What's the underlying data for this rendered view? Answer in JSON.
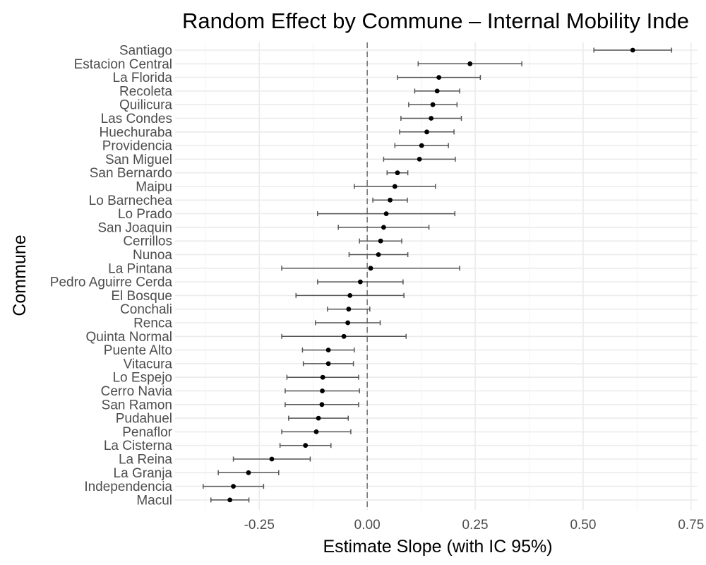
{
  "chart_data": {
    "type": "scatter",
    "title": "Random Effect by Commune – Internal Mobility Inde",
    "xlabel": "Estimate Slope (with IC 95%)",
    "ylabel": "Commune",
    "xlim": [
      -0.445,
      0.765
    ],
    "x_ticks": [
      -0.25,
      0.0,
      0.25,
      0.5,
      0.75
    ],
    "x_tick_labels": [
      "-0.25",
      "0.00",
      "0.25",
      "0.50",
      "0.75"
    ],
    "reference_line": {
      "x": 0,
      "style": "dashed"
    },
    "grid": true,
    "point_color": "#000000",
    "errorbar_color": "#555555",
    "points": [
      {
        "label": "Santiago",
        "estimate": 0.615,
        "lower": 0.525,
        "upper": 0.705
      },
      {
        "label": "Estacion Central",
        "estimate": 0.238,
        "lower": 0.118,
        "upper": 0.358
      },
      {
        "label": "La Florida",
        "estimate": 0.166,
        "lower": 0.07,
        "upper": 0.262
      },
      {
        "label": "Recoleta",
        "estimate": 0.162,
        "lower": 0.11,
        "upper": 0.214
      },
      {
        "label": "Quilicura",
        "estimate": 0.152,
        "lower": 0.096,
        "upper": 0.208
      },
      {
        "label": "Las Condes",
        "estimate": 0.148,
        "lower": 0.078,
        "upper": 0.218
      },
      {
        "label": "Huechuraba",
        "estimate": 0.138,
        "lower": 0.075,
        "upper": 0.201
      },
      {
        "label": "Providencia",
        "estimate": 0.126,
        "lower": 0.064,
        "upper": 0.188
      },
      {
        "label": "San Miguel",
        "estimate": 0.121,
        "lower": 0.038,
        "upper": 0.204
      },
      {
        "label": "San Bernardo",
        "estimate": 0.07,
        "lower": 0.046,
        "upper": 0.094
      },
      {
        "label": "Maipu",
        "estimate": 0.064,
        "lower": -0.03,
        "upper": 0.158
      },
      {
        "label": "Lo Barnechea",
        "estimate": 0.053,
        "lower": 0.013,
        "upper": 0.093
      },
      {
        "label": "Lo Prado",
        "estimate": 0.044,
        "lower": -0.115,
        "upper": 0.203
      },
      {
        "label": "San Joaquin",
        "estimate": 0.038,
        "lower": -0.067,
        "upper": 0.143
      },
      {
        "label": "Cerrillos",
        "estimate": 0.031,
        "lower": -0.018,
        "upper": 0.08
      },
      {
        "label": "Nunoa",
        "estimate": 0.026,
        "lower": -0.042,
        "upper": 0.094
      },
      {
        "label": "La Pintana",
        "estimate": 0.008,
        "lower": -0.198,
        "upper": 0.214
      },
      {
        "label": "Pedro Aguirre Cerda",
        "estimate": -0.016,
        "lower": -0.115,
        "upper": 0.083
      },
      {
        "label": "El Bosque",
        "estimate": -0.04,
        "lower": -0.165,
        "upper": 0.085
      },
      {
        "label": "Conchali",
        "estimate": -0.043,
        "lower": -0.092,
        "upper": 0.006
      },
      {
        "label": "Renca",
        "estimate": -0.045,
        "lower": -0.12,
        "upper": 0.03
      },
      {
        "label": "Quinta Normal",
        "estimate": -0.054,
        "lower": -0.198,
        "upper": 0.09
      },
      {
        "label": "Puente Alto",
        "estimate": -0.09,
        "lower": -0.15,
        "upper": -0.03
      },
      {
        "label": "Vitacura",
        "estimate": -0.09,
        "lower": -0.148,
        "upper": -0.032
      },
      {
        "label": "Lo Espejo",
        "estimate": -0.103,
        "lower": -0.186,
        "upper": -0.02
      },
      {
        "label": "Cerro Navia",
        "estimate": -0.104,
        "lower": -0.19,
        "upper": -0.018
      },
      {
        "label": "San Ramon",
        "estimate": -0.105,
        "lower": -0.19,
        "upper": -0.02
      },
      {
        "label": "Pudahuel",
        "estimate": -0.113,
        "lower": -0.182,
        "upper": -0.044
      },
      {
        "label": "Penaflor",
        "estimate": -0.118,
        "lower": -0.198,
        "upper": -0.038
      },
      {
        "label": "La Cisterna",
        "estimate": -0.143,
        "lower": -0.202,
        "upper": -0.084
      },
      {
        "label": "La Reina",
        "estimate": -0.221,
        "lower": -0.31,
        "upper": -0.132
      },
      {
        "label": "La Granja",
        "estimate": -0.275,
        "lower": -0.345,
        "upper": -0.205
      },
      {
        "label": "Independencia",
        "estimate": -0.31,
        "lower": -0.38,
        "upper": -0.24
      },
      {
        "label": "Macul",
        "estimate": -0.318,
        "lower": -0.362,
        "upper": -0.274
      }
    ]
  }
}
